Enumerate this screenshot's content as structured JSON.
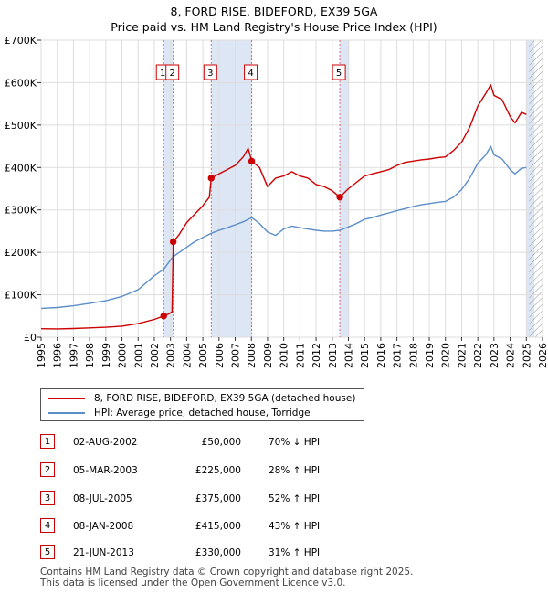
{
  "chart_data": {
    "type": "line",
    "title_line1": "8, FORD RISE, BIDEFORD, EX39 5GA",
    "title_line2": "Price paid vs. HM Land Registry's House Price Index (HPI)",
    "xlim": [
      1995,
      2026
    ],
    "ylim": [
      0,
      700000
    ],
    "x_ticks": [
      1995,
      1996,
      1997,
      1998,
      1999,
      2000,
      2001,
      2002,
      2003,
      2004,
      2005,
      2006,
      2007,
      2008,
      2009,
      2010,
      2011,
      2012,
      2013,
      2014,
      2015,
      2016,
      2017,
      2018,
      2019,
      2020,
      2021,
      2022,
      2023,
      2024,
      2025,
      2026
    ],
    "y_ticks": [
      {
        "value": 0,
        "label": "£0"
      },
      {
        "value": 100000,
        "label": "£100K"
      },
      {
        "value": 200000,
        "label": "£200K"
      },
      {
        "value": 300000,
        "label": "£300K"
      },
      {
        "value": 400000,
        "label": "£400K"
      },
      {
        "value": 500000,
        "label": "£500K"
      },
      {
        "value": 600000,
        "label": "£600K"
      },
      {
        "value": 700000,
        "label": "£700K"
      }
    ],
    "colors": {
      "property": "#cc0000",
      "hpi": "#5b8ec9",
      "shade": "#dde6f5",
      "marker_line": "#dd6677",
      "grid": "#dddddd"
    },
    "shaded_ranges": [
      [
        2002.58,
        2003.17
      ],
      [
        2005.52,
        2008.02
      ],
      [
        2013.47,
        2014.05
      ],
      [
        2025.0,
        2025.5
      ]
    ],
    "hatched_from": 2025.17,
    "series": [
      {
        "name": "8, FORD RISE, BIDEFORD, EX39 5GA (detached house)",
        "color": "#cc0000",
        "points": [
          [
            1995.0,
            20000
          ],
          [
            1996.0,
            19500
          ],
          [
            1997.0,
            20500
          ],
          [
            1998.0,
            22000
          ],
          [
            1999.0,
            23500
          ],
          [
            2000.0,
            26000
          ],
          [
            2001.0,
            32000
          ],
          [
            2002.0,
            42000
          ],
          [
            2002.58,
            50000
          ],
          [
            2002.9,
            55000
          ],
          [
            2003.1,
            60000
          ],
          [
            2003.17,
            225000
          ],
          [
            2003.5,
            240000
          ],
          [
            2004.0,
            270000
          ],
          [
            2004.5,
            290000
          ],
          [
            2005.0,
            310000
          ],
          [
            2005.4,
            330000
          ],
          [
            2005.52,
            375000
          ],
          [
            2006.0,
            385000
          ],
          [
            2006.5,
            395000
          ],
          [
            2007.0,
            405000
          ],
          [
            2007.5,
            425000
          ],
          [
            2007.8,
            445000
          ],
          [
            2008.02,
            415000
          ],
          [
            2008.5,
            400000
          ],
          [
            2009.0,
            355000
          ],
          [
            2009.5,
            375000
          ],
          [
            2010.0,
            380000
          ],
          [
            2010.5,
            390000
          ],
          [
            2011.0,
            380000
          ],
          [
            2011.5,
            375000
          ],
          [
            2012.0,
            360000
          ],
          [
            2012.5,
            355000
          ],
          [
            2013.0,
            345000
          ],
          [
            2013.47,
            330000
          ],
          [
            2014.0,
            350000
          ],
          [
            2014.5,
            365000
          ],
          [
            2015.0,
            380000
          ],
          [
            2015.5,
            385000
          ],
          [
            2016.0,
            390000
          ],
          [
            2016.5,
            395000
          ],
          [
            2017.0,
            405000
          ],
          [
            2017.5,
            412000
          ],
          [
            2018.0,
            415000
          ],
          [
            2018.5,
            418000
          ],
          [
            2019.0,
            420000
          ],
          [
            2019.5,
            423000
          ],
          [
            2020.0,
            425000
          ],
          [
            2020.5,
            440000
          ],
          [
            2021.0,
            460000
          ],
          [
            2021.5,
            495000
          ],
          [
            2022.0,
            545000
          ],
          [
            2022.5,
            575000
          ],
          [
            2022.8,
            595000
          ],
          [
            2023.0,
            570000
          ],
          [
            2023.5,
            560000
          ],
          [
            2024.0,
            520000
          ],
          [
            2024.3,
            505000
          ],
          [
            2024.7,
            530000
          ],
          [
            2025.0,
            525000
          ]
        ]
      },
      {
        "name": "HPI: Average price, detached house, Torridge",
        "color": "#5b8ec9",
        "points": [
          [
            1995.0,
            68000
          ],
          [
            1996.0,
            70000
          ],
          [
            1997.0,
            74000
          ],
          [
            1998.0,
            80000
          ],
          [
            1999.0,
            86000
          ],
          [
            2000.0,
            96000
          ],
          [
            2001.0,
            112000
          ],
          [
            2002.0,
            145000
          ],
          [
            2002.58,
            160000
          ],
          [
            2003.0,
            182000
          ],
          [
            2003.17,
            190000
          ],
          [
            2004.0,
            212000
          ],
          [
            2004.5,
            225000
          ],
          [
            2005.0,
            235000
          ],
          [
            2005.52,
            245000
          ],
          [
            2006.0,
            252000
          ],
          [
            2006.5,
            258000
          ],
          [
            2007.0,
            265000
          ],
          [
            2007.5,
            272000
          ],
          [
            2008.02,
            282000
          ],
          [
            2008.5,
            268000
          ],
          [
            2009.0,
            248000
          ],
          [
            2009.5,
            240000
          ],
          [
            2010.0,
            255000
          ],
          [
            2010.5,
            262000
          ],
          [
            2011.0,
            258000
          ],
          [
            2011.5,
            255000
          ],
          [
            2012.0,
            252000
          ],
          [
            2012.5,
            250000
          ],
          [
            2013.0,
            250000
          ],
          [
            2013.47,
            252000
          ],
          [
            2014.0,
            260000
          ],
          [
            2014.5,
            268000
          ],
          [
            2015.0,
            278000
          ],
          [
            2015.5,
            282000
          ],
          [
            2016.0,
            288000
          ],
          [
            2016.5,
            293000
          ],
          [
            2017.0,
            298000
          ],
          [
            2017.5,
            303000
          ],
          [
            2018.0,
            308000
          ],
          [
            2018.5,
            312000
          ],
          [
            2019.0,
            315000
          ],
          [
            2019.5,
            318000
          ],
          [
            2020.0,
            320000
          ],
          [
            2020.5,
            330000
          ],
          [
            2021.0,
            348000
          ],
          [
            2021.5,
            375000
          ],
          [
            2022.0,
            410000
          ],
          [
            2022.5,
            430000
          ],
          [
            2022.8,
            450000
          ],
          [
            2023.0,
            430000
          ],
          [
            2023.5,
            420000
          ],
          [
            2024.0,
            395000
          ],
          [
            2024.3,
            385000
          ],
          [
            2024.7,
            398000
          ],
          [
            2025.0,
            400000
          ]
        ]
      }
    ],
    "sales": [
      {
        "num": "1",
        "x": 2002.58,
        "price": 50000
      },
      {
        "num": "2",
        "x": 2003.17,
        "price": 225000
      },
      {
        "num": "3",
        "x": 2005.52,
        "price": 375000
      },
      {
        "num": "4",
        "x": 2008.02,
        "price": 415000
      },
      {
        "num": "5",
        "x": 2013.47,
        "price": 330000
      }
    ]
  },
  "legend": {
    "property_label": "8, FORD RISE, BIDEFORD, EX39 5GA (detached house)",
    "hpi_label": "HPI: Average price, detached house, Torridge"
  },
  "table": [
    {
      "num": "1",
      "date": "02-AUG-2002",
      "price": "£50,000",
      "hpi": "70% ↓ HPI"
    },
    {
      "num": "2",
      "date": "05-MAR-2003",
      "price": "£225,000",
      "hpi": "28% ↑ HPI"
    },
    {
      "num": "3",
      "date": "08-JUL-2005",
      "price": "£375,000",
      "hpi": "52% ↑ HPI"
    },
    {
      "num": "4",
      "date": "08-JAN-2008",
      "price": "£415,000",
      "hpi": "43% ↑ HPI"
    },
    {
      "num": "5",
      "date": "21-JUN-2013",
      "price": "£330,000",
      "hpi": "31% ↑ HPI"
    }
  ],
  "footer": {
    "line1": "Contains HM Land Registry data © Crown copyright and database right 2025.",
    "line2": "This data is licensed under the Open Government Licence v3.0."
  }
}
